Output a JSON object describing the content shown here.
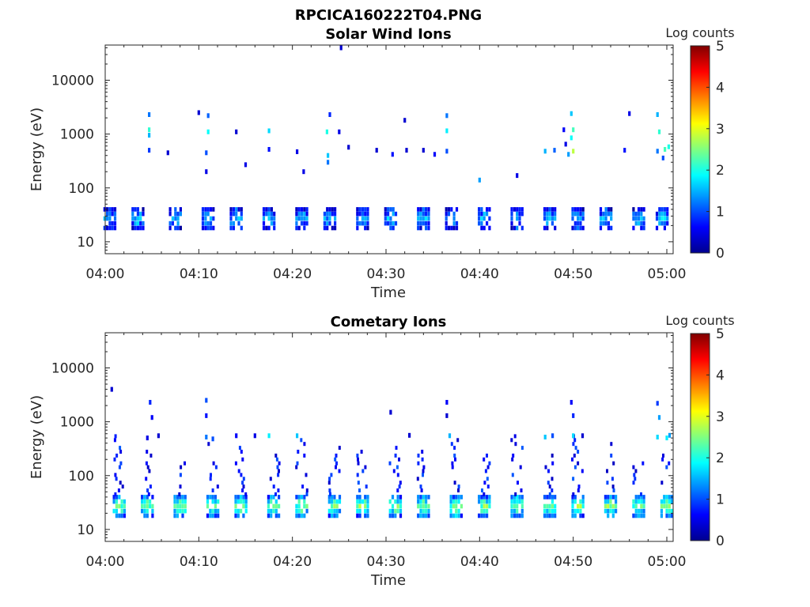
{
  "figure_title": "RPCICA160222T04.PNG",
  "colorbar": {
    "label": "Log counts",
    "ticks": [
      0,
      1,
      2,
      3,
      4,
      5
    ],
    "colormap": "jet"
  },
  "chart_data": [
    {
      "type": "heatmap",
      "title": "Solar Wind Ions",
      "xlabel": "Time",
      "ylabel": "Energy (eV)",
      "x_tick_labels": [
        "04:00",
        "04:10",
        "04:20",
        "04:30",
        "04:40",
        "04:50",
        "05:00"
      ],
      "y_tick_labels": [
        "10",
        "100",
        "1000",
        "10000"
      ],
      "y_scale": "log",
      "y_range": [
        6,
        45000
      ],
      "x_range": [
        "04:00",
        "05:00"
      ],
      "c_range": [
        0,
        5
      ],
      "periodic_bursts": {
        "times": [
          "04:00.5",
          "04:03.5",
          "04:07.5",
          "04:11",
          "04:14",
          "04:17.5",
          "04:21",
          "04:24",
          "04:27.5",
          "04:30.5",
          "04:34",
          "04:37",
          "04:40.5",
          "04:44",
          "04:47.5",
          "04:50.5",
          "04:53.5",
          "04:57",
          "04:59.5"
        ],
        "energy_bands_eV": [
          18,
          22,
          27,
          33,
          40
        ],
        "typical_log_counts": [
          0.9,
          1.3,
          1.6,
          1.3,
          0.9
        ]
      },
      "sparse_points": [
        {
          "t": "04:04.7",
          "e": 2300,
          "c": 1.2
        },
        {
          "t": "04:04.7",
          "e": 1200,
          "c": 2.1
        },
        {
          "t": "04:04.7",
          "e": 950,
          "c": 1.5
        },
        {
          "t": "04:04.7",
          "e": 500,
          "c": 0.9
        },
        {
          "t": "04:06.7",
          "e": 450,
          "c": 0.4
        },
        {
          "t": "04:10.0",
          "e": 2500,
          "c": 0.4
        },
        {
          "t": "04:11.0",
          "e": 2200,
          "c": 1.1
        },
        {
          "t": "04:11.0",
          "e": 1100,
          "c": 1.9
        },
        {
          "t": "04:10.8",
          "e": 450,
          "c": 1.0
        },
        {
          "t": "04:10.8",
          "e": 200,
          "c": 0.5
        },
        {
          "t": "04:14.0",
          "e": 1100,
          "c": 0.4
        },
        {
          "t": "04:15.0",
          "e": 270,
          "c": 0.5
        },
        {
          "t": "04:17.5",
          "e": 1150,
          "c": 1.7
        },
        {
          "t": "04:17.5",
          "e": 520,
          "c": 0.7
        },
        {
          "t": "04:20.5",
          "e": 470,
          "c": 0.5
        },
        {
          "t": "04:21.2",
          "e": 200,
          "c": 0.5
        },
        {
          "t": "04:23.7",
          "e": 1100,
          "c": 2.0
        },
        {
          "t": "04:24.0",
          "e": 2300,
          "c": 0.8
        },
        {
          "t": "04:23.8",
          "e": 400,
          "c": 1.6
        },
        {
          "t": "04:23.8",
          "e": 300,
          "c": 1.2
        },
        {
          "t": "04:25.0",
          "e": 1100,
          "c": 0.5
        },
        {
          "t": "04:25.2",
          "e": 40000,
          "c": 0.4
        },
        {
          "t": "04:26.0",
          "e": 570,
          "c": 0.4
        },
        {
          "t": "04:29.0",
          "e": 500,
          "c": 0.4
        },
        {
          "t": "04:30.7",
          "e": 420,
          "c": 0.7
        },
        {
          "t": "04:32.0",
          "e": 1800,
          "c": 0.4
        },
        {
          "t": "04:32.2",
          "e": 500,
          "c": 0.4
        },
        {
          "t": "04:34.0",
          "e": 500,
          "c": 0.4
        },
        {
          "t": "04:35.2",
          "e": 420,
          "c": 0.6
        },
        {
          "t": "04:36.5",
          "e": 2200,
          "c": 1.2
        },
        {
          "t": "04:36.5",
          "e": 1150,
          "c": 1.8
        },
        {
          "t": "04:36.5",
          "e": 480,
          "c": 1.0
        },
        {
          "t": "04:40.0",
          "e": 140,
          "c": 1.4
        },
        {
          "t": "04:44.0",
          "e": 170,
          "c": 0.5
        },
        {
          "t": "04:47.0",
          "e": 480,
          "c": 1.5
        },
        {
          "t": "04:48.0",
          "e": 500,
          "c": 1.1
        },
        {
          "t": "04:49.0",
          "e": 1200,
          "c": 0.6
        },
        {
          "t": "04:49.2",
          "e": 650,
          "c": 0.5
        },
        {
          "t": "04:49.8",
          "e": 2400,
          "c": 1.6
        },
        {
          "t": "04:50.0",
          "e": 1200,
          "c": 2.2
        },
        {
          "t": "04:50.0",
          "e": 480,
          "c": 2.8
        },
        {
          "t": "04:49.5",
          "e": 420,
          "c": 1.4
        },
        {
          "t": "04:49.8",
          "e": 850,
          "c": 1.9
        },
        {
          "t": "04:55.5",
          "e": 500,
          "c": 0.7
        },
        {
          "t": "04:56.0",
          "e": 2400,
          "c": 0.5
        },
        {
          "t": "04:59.0",
          "e": 2300,
          "c": 1.5
        },
        {
          "t": "04:59.2",
          "e": 1100,
          "c": 2.1
        },
        {
          "t": "04:59.0",
          "e": 480,
          "c": 1.2
        },
        {
          "t": "04:59.8",
          "e": 520,
          "c": 2.2
        },
        {
          "t": "05:00.2",
          "e": 580,
          "c": 2.0
        },
        {
          "t": "04:59.6",
          "e": 360,
          "c": 1.0
        }
      ]
    },
    {
      "type": "heatmap",
      "title": "Cometary Ions",
      "xlabel": "Time",
      "ylabel": "Energy (eV)",
      "x_tick_labels": [
        "04:00",
        "04:10",
        "04:20",
        "04:30",
        "04:40",
        "04:50",
        "05:00"
      ],
      "y_tick_labels": [
        "10",
        "100",
        "1000",
        "10000"
      ],
      "y_scale": "log",
      "y_range": [
        6,
        45000
      ],
      "x_range": [
        "04:00",
        "05:00"
      ],
      "c_range": [
        0,
        5
      ],
      "periodic_bursts": {
        "times": [
          "04:01.5",
          "04:04.5",
          "04:08",
          "04:11.5",
          "04:14.5",
          "04:18",
          "04:21",
          "04:24.5",
          "04:27.5",
          "04:31",
          "04:34",
          "04:37.5",
          "04:40.5",
          "04:44",
          "04:47.5",
          "04:50.5",
          "04:54",
          "04:57",
          "05:00"
        ],
        "energy_bands_eV": [
          18,
          22,
          27,
          33,
          40
        ],
        "typical_log_counts": [
          1.4,
          2.0,
          2.6,
          2.1,
          1.4
        ]
      },
      "sparse_points": [
        {
          "t": "04:00.7",
          "e": 4000,
          "c": 0.4
        },
        {
          "t": "04:04.8",
          "e": 2300,
          "c": 0.8
        },
        {
          "t": "04:05.0",
          "e": 1200,
          "c": 0.6
        },
        {
          "t": "04:04.5",
          "e": 500,
          "c": 0.5
        },
        {
          "t": "04:05.7",
          "e": 550,
          "c": 0.4
        },
        {
          "t": "04:10.8",
          "e": 2500,
          "c": 1.0
        },
        {
          "t": "04:10.8",
          "e": 1300,
          "c": 0.7
        },
        {
          "t": "04:10.8",
          "e": 520,
          "c": 1.2
        },
        {
          "t": "04:11.5",
          "e": 480,
          "c": 1.0
        },
        {
          "t": "04:14.0",
          "e": 550,
          "c": 0.6
        },
        {
          "t": "04:16.0",
          "e": 550,
          "c": 0.5
        },
        {
          "t": "04:17.5",
          "e": 550,
          "c": 1.8
        },
        {
          "t": "04:20.5",
          "e": 550,
          "c": 1.6
        },
        {
          "t": "04:30.5",
          "e": 1500,
          "c": 0.4
        },
        {
          "t": "04:32.5",
          "e": 560,
          "c": 0.4
        },
        {
          "t": "04:36.5",
          "e": 2300,
          "c": 0.6
        },
        {
          "t": "04:36.5",
          "e": 1300,
          "c": 0.4
        },
        {
          "t": "04:36.8",
          "e": 550,
          "c": 1.5
        },
        {
          "t": "04:47.0",
          "e": 520,
          "c": 1.6
        },
        {
          "t": "04:47.8",
          "e": 550,
          "c": 1.0
        },
        {
          "t": "04:49.8",
          "e": 2300,
          "c": 0.6
        },
        {
          "t": "04:50.0",
          "e": 1300,
          "c": 0.8
        },
        {
          "t": "04:50.0",
          "e": 550,
          "c": 1.7
        },
        {
          "t": "04:51.0",
          "e": 550,
          "c": 0.4
        },
        {
          "t": "04:59.0",
          "e": 2200,
          "c": 0.9
        },
        {
          "t": "04:59.2",
          "e": 1200,
          "c": 1.4
        },
        {
          "t": "04:59.0",
          "e": 520,
          "c": 1.7
        },
        {
          "t": "05:00.0",
          "e": 500,
          "c": 1.8
        },
        {
          "t": "05:00.3",
          "e": 560,
          "c": 1.4
        }
      ],
      "hot_tails_to_eV": [
        600,
        300,
        250,
        400,
        350,
        350,
        500,
        400,
        300,
        400,
        350,
        500,
        350,
        600,
        300,
        550,
        400,
        250,
        300
      ]
    }
  ]
}
